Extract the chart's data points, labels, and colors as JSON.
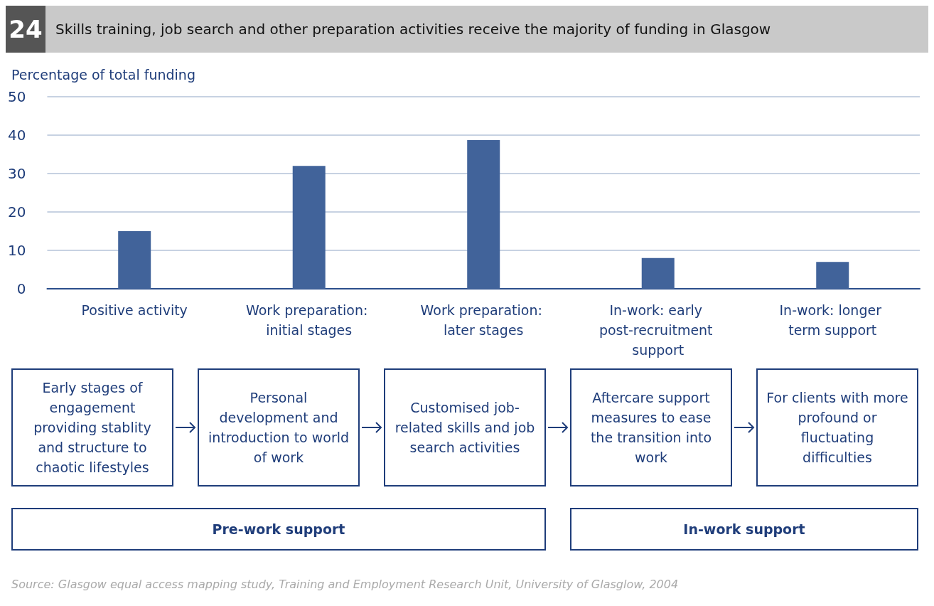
{
  "chart_data": {
    "type": "bar",
    "title": "Skills training, job search and other preparation activities receive the majority of funding in Glasgow",
    "ylabel": "Percentage of total funding",
    "categories": [
      "Positive activity",
      "Work preparation: initial stages",
      "Work preparation: later stages",
      "In-work: early post-recruitment support",
      "In-work: longer term support"
    ],
    "values": [
      15,
      32,
      38.7,
      8,
      7
    ],
    "color": "#41639a",
    "ylim": [
      0,
      50
    ],
    "yticks": [
      0,
      10,
      20,
      30,
      40,
      50
    ],
    "grid": "y",
    "annotations": [
      "24",
      "Early stages of engagement providing stablity and structure to chaotic lifestyles",
      "Personal development and introduction to world of work",
      "Customised job-related skills and job search activities",
      "Aftercare support measures to ease the transition into work",
      "For clients with more profound or fluctuating difficulties",
      "Pre-work support",
      "In-work support",
      "Source: Glasgow equal access mapping study, Training and Employment Research Unit, University of Glasglow, 2004"
    ]
  }
}
